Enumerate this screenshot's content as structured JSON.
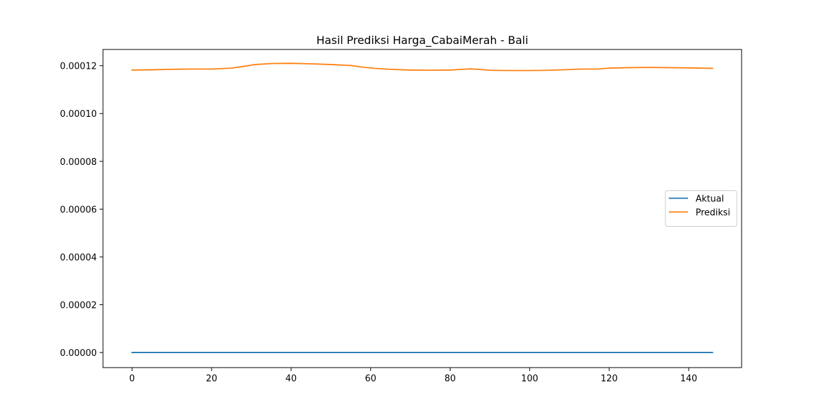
{
  "chart_data": {
    "type": "line",
    "title": "Hasil Prediksi Harga_CabaiMerah - Bali",
    "xlabel": "",
    "ylabel": "",
    "xlim": [
      -7.3,
      153.3
    ],
    "ylim": [
      -6.3e-06,
      0.0001268
    ],
    "xticks": [
      0,
      20,
      40,
      60,
      80,
      100,
      120,
      140
    ],
    "xtick_labels": [
      "0",
      "20",
      "40",
      "60",
      "80",
      "100",
      "120",
      "140"
    ],
    "yticks": [
      0,
      2e-05,
      4e-05,
      6e-05,
      8e-05,
      0.0001,
      0.00012
    ],
    "ytick_labels": [
      "0.00000",
      "0.00002",
      "0.00004",
      "0.00006",
      "0.00008",
      "0.00010",
      "0.00012"
    ],
    "grid": false,
    "legend_position": "center-right",
    "series": [
      {
        "name": "Aktual",
        "color": "#1f77b4",
        "x": [
          0,
          146
        ],
        "y": [
          0.0,
          0.0
        ]
      },
      {
        "name": "Prediksi",
        "color": "#ff7f0e",
        "x": [
          0,
          5,
          10,
          15,
          20,
          25,
          28,
          31,
          35,
          40,
          45,
          50,
          55,
          58,
          61,
          65,
          70,
          75,
          80,
          83,
          85,
          87,
          90,
          95,
          100,
          105,
          110,
          113,
          117,
          120,
          125,
          130,
          135,
          140,
          146
        ],
        "y": [
          0.0001182,
          0.0001183,
          0.0001185,
          0.0001186,
          0.0001186,
          0.000119,
          0.0001197,
          0.0001205,
          0.0001209,
          0.000121,
          0.0001208,
          0.0001205,
          0.0001201,
          0.0001194,
          0.0001189,
          0.0001185,
          0.0001182,
          0.0001181,
          0.0001182,
          0.0001185,
          0.0001187,
          0.0001185,
          0.0001181,
          0.000118,
          0.000118,
          0.0001181,
          0.0001184,
          0.0001186,
          0.0001186,
          0.000119,
          0.0001192,
          0.0001193,
          0.0001192,
          0.0001191,
          0.0001189
        ]
      }
    ]
  }
}
